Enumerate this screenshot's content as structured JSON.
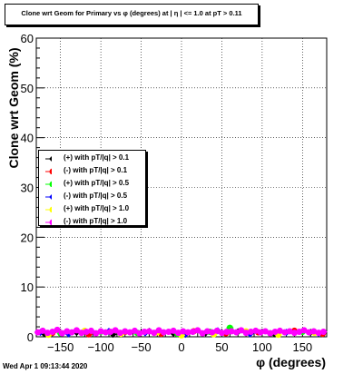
{
  "chart_data": {
    "type": "scatter",
    "title": "Clone wrt Geom for Primary vs φ (degrees) at | η | <= 1.0 at pT > 0.11",
    "xlabel": "φ (degrees)",
    "ylabel": "Clone wrt Geom (%)",
    "xlim": [
      -180,
      180
    ],
    "ylim": [
      0,
      60
    ],
    "x_ticks": [
      -150,
      -100,
      -50,
      0,
      50,
      100,
      150
    ],
    "y_ticks": [
      0,
      10,
      20,
      30,
      40,
      50,
      60
    ],
    "grid": true,
    "legend_position": "left",
    "series": [
      {
        "name": "(+) with pT/|q| > 0.1",
        "color": "#000000",
        "marker": "diamond",
        "x": [
          -170,
          -130,
          -85,
          -40,
          -10,
          30,
          70,
          115,
          160
        ],
        "y": [
          0.6,
          0.9,
          0.5,
          1.1,
          0.7,
          0.8,
          1.0,
          0.6,
          0.9
        ]
      },
      {
        "name": "(-) with pT/|q| > 0.1",
        "color": "#ff0000",
        "marker": "circle",
        "x": [
          -160,
          -115,
          -70,
          -25,
          15,
          55,
          95,
          140,
          175
        ],
        "y": [
          0.8,
          0.5,
          1.0,
          0.6,
          1.1,
          0.7,
          0.9,
          1.2,
          0.6
        ]
      },
      {
        "name": "(+) with pT/|q| > 0.5",
        "color": "#00ff00",
        "marker": "circle",
        "x": [
          -150,
          -100,
          -55,
          -5,
          35,
          60,
          110,
          150
        ],
        "y": [
          0.7,
          1.0,
          0.8,
          0.6,
          1.0,
          1.8,
          0.7,
          1.0
        ]
      },
      {
        "name": "(-) with pT/|q| > 0.5",
        "color": "#0000ff",
        "marker": "diamond",
        "x": [
          -175,
          -140,
          -90,
          -45,
          5,
          45,
          85,
          130,
          170
        ],
        "y": [
          0.9,
          0.6,
          1.1,
          0.8,
          0.5,
          1.2,
          0.6,
          0.9,
          0.7
        ]
      },
      {
        "name": "(+) with pT/|q| > 1.0",
        "color": "#ffff00",
        "marker": "circle",
        "x": [
          -165,
          -120,
          -75,
          -30,
          0,
          40,
          80,
          120,
          165
        ],
        "y": [
          0.4,
          1.2,
          0.6,
          0.9,
          0.3,
          0.5,
          1.1,
          0.4,
          0.8
        ]
      },
      {
        "name": "(-) with pT/|q| > 1.0",
        "color": "#ff00ff",
        "marker": "circle",
        "x": [
          -178,
          -172,
          -166,
          -160,
          -154,
          -148,
          -142,
          -136,
          -130,
          -124,
          -118,
          -112,
          -106,
          -100,
          -94,
          -88,
          -82,
          -76,
          -70,
          -64,
          -58,
          -52,
          -46,
          -40,
          -34,
          -28,
          -22,
          -16,
          -10,
          -4,
          2,
          8,
          14,
          20,
          26,
          32,
          38,
          44,
          50,
          56,
          62,
          68,
          74,
          80,
          86,
          92,
          98,
          104,
          110,
          116,
          122,
          128,
          134,
          140,
          146,
          152,
          158,
          164,
          170,
          176
        ],
        "y": [
          0.9,
          1.2,
          0.8,
          1.0,
          1.4,
          0.7,
          1.1,
          0.9,
          1.3,
          0.8,
          1.0,
          1.2,
          0.7,
          1.1,
          0.9,
          1.0,
          1.3,
          0.8,
          1.1,
          0.9,
          1.2,
          0.7,
          1.0,
          1.1,
          0.8,
          1.3,
          0.9,
          1.0,
          1.2,
          0.8,
          1.1,
          0.9,
          1.0,
          1.3,
          0.7,
          1.1,
          0.9,
          1.2,
          0.8,
          1.0,
          1.1,
          0.9,
          1.3,
          0.8,
          1.0,
          1.2,
          0.9,
          1.1,
          0.7,
          1.0,
          1.2,
          0.9,
          1.1,
          0.8,
          1.0,
          1.3,
          0.9,
          1.1,
          0.8,
          1.0
        ]
      }
    ]
  },
  "footer": {
    "timestamp": "Wed Apr  1 09:13:44 2020"
  }
}
